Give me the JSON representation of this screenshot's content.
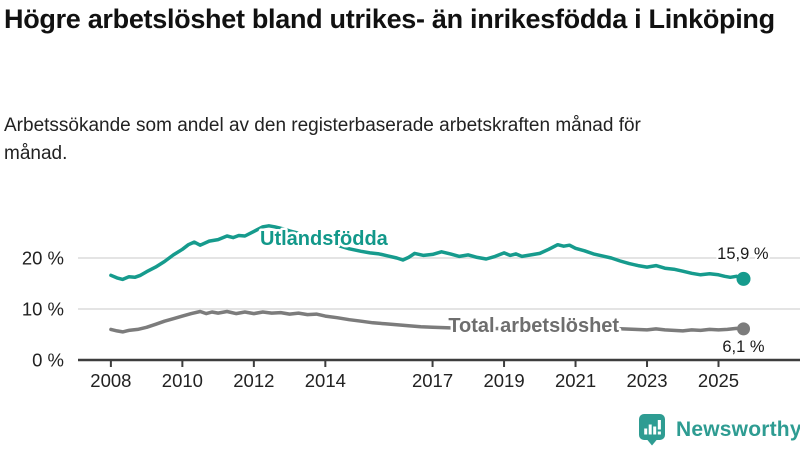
{
  "title": "Högre arbetslöshet bland utrikes- än inrikesfödda i Linköping",
  "subtitle": "Arbetssökande som andel av den registerbaserade arbetskraften månad för månad.",
  "colors": {
    "brand": "#2E9C92",
    "teal_series": "#169B8D",
    "gray_series": "#7C7C7C",
    "gray_label": "#6E6E6E",
    "axis": "#3D3D3D",
    "gridline": "#DBDBDB",
    "text_dark": "#1A1A1A"
  },
  "branding": {
    "name": "Newsworthy",
    "icon": "newsworthy-chart-bubble-icon"
  },
  "chart_data": {
    "type": "line",
    "title": "Högre arbetslöshet bland utrikes- än inrikesfödda i Linköping",
    "subtitle": "Arbetssökande som andel av den registerbaserade arbetskraften månad för månad.",
    "xlabel": "",
    "ylabel": "",
    "grid": "horizontal",
    "xlim": [
      2007.08,
      2027.28
    ],
    "ylim": [
      0,
      29.4
    ],
    "x_ticks": [
      2008,
      2010,
      2012,
      2014,
      2017,
      2019,
      2021,
      2023,
      2025
    ],
    "x_tick_labels": [
      "2008",
      "2010",
      "2012",
      "2014",
      "2017",
      "2019",
      "2021",
      "2023",
      "2025"
    ],
    "y_ticks": [
      0,
      10,
      20
    ],
    "y_tick_labels": [
      "0 %",
      "10 %",
      "20 %"
    ],
    "series": [
      {
        "name": "Utlandsfödda",
        "color": "#169B8D",
        "label_color": "#12988A",
        "end_label": "15,9 %",
        "end_value": 15.9,
        "label_pos": [
          2013.96,
          23.9
        ],
        "end_label_offset": [
          25,
          -20
        ],
        "dot_radius": 7,
        "points": [
          [
            2008.0,
            16.6
          ],
          [
            2008.17,
            16.1
          ],
          [
            2008.33,
            15.8
          ],
          [
            2008.5,
            16.3
          ],
          [
            2008.67,
            16.2
          ],
          [
            2008.83,
            16.6
          ],
          [
            2009.0,
            17.3
          ],
          [
            2009.25,
            18.2
          ],
          [
            2009.5,
            19.3
          ],
          [
            2009.75,
            20.6
          ],
          [
            2010.0,
            21.7
          ],
          [
            2010.17,
            22.6
          ],
          [
            2010.33,
            23.1
          ],
          [
            2010.5,
            22.5
          ],
          [
            2010.75,
            23.3
          ],
          [
            2011.0,
            23.6
          ],
          [
            2011.25,
            24.3
          ],
          [
            2011.42,
            24.0
          ],
          [
            2011.58,
            24.4
          ],
          [
            2011.75,
            24.3
          ],
          [
            2012.0,
            25.2
          ],
          [
            2012.25,
            26.1
          ],
          [
            2012.42,
            26.3
          ],
          [
            2012.58,
            26.1
          ],
          [
            2012.83,
            25.7
          ],
          [
            2013.0,
            25.3
          ],
          [
            2013.33,
            24.7
          ],
          [
            2013.67,
            24.0
          ],
          [
            2014.0,
            23.3
          ],
          [
            2014.33,
            22.5
          ],
          [
            2014.67,
            21.8
          ],
          [
            2015.0,
            21.3
          ],
          [
            2015.25,
            21.0
          ],
          [
            2015.5,
            20.8
          ],
          [
            2015.75,
            20.4
          ],
          [
            2016.0,
            20.0
          ],
          [
            2016.17,
            19.6
          ],
          [
            2016.33,
            20.1
          ],
          [
            2016.5,
            20.9
          ],
          [
            2016.75,
            20.5
          ],
          [
            2017.0,
            20.7
          ],
          [
            2017.25,
            21.2
          ],
          [
            2017.5,
            20.8
          ],
          [
            2017.75,
            20.3
          ],
          [
            2018.0,
            20.6
          ],
          [
            2018.25,
            20.1
          ],
          [
            2018.5,
            19.8
          ],
          [
            2018.75,
            20.3
          ],
          [
            2019.0,
            21.0
          ],
          [
            2019.17,
            20.5
          ],
          [
            2019.33,
            20.8
          ],
          [
            2019.5,
            20.3
          ],
          [
            2019.75,
            20.6
          ],
          [
            2020.0,
            20.9
          ],
          [
            2020.25,
            21.7
          ],
          [
            2020.5,
            22.6
          ],
          [
            2020.67,
            22.3
          ],
          [
            2020.83,
            22.5
          ],
          [
            2021.0,
            21.9
          ],
          [
            2021.25,
            21.4
          ],
          [
            2021.5,
            20.8
          ],
          [
            2021.75,
            20.4
          ],
          [
            2022.0,
            20.0
          ],
          [
            2022.25,
            19.4
          ],
          [
            2022.5,
            18.9
          ],
          [
            2022.75,
            18.5
          ],
          [
            2023.0,
            18.2
          ],
          [
            2023.25,
            18.5
          ],
          [
            2023.5,
            18.0
          ],
          [
            2023.75,
            17.8
          ],
          [
            2024.0,
            17.4
          ],
          [
            2024.25,
            17.0
          ],
          [
            2024.5,
            16.7
          ],
          [
            2024.75,
            16.9
          ],
          [
            2025.0,
            16.7
          ],
          [
            2025.17,
            16.4
          ],
          [
            2025.33,
            16.2
          ],
          [
            2025.5,
            16.4
          ],
          [
            2025.7,
            15.9
          ]
        ]
      },
      {
        "name": "Total arbetslöshet",
        "color": "#7C7C7C",
        "label_color": "#6E6E6E",
        "end_label": "6,1 %",
        "end_value": 6.1,
        "label_pos": [
          2019.83,
          6.9
        ],
        "end_label_offset": [
          21,
          23
        ],
        "dot_radius": 6.5,
        "points": [
          [
            2008.0,
            6.0
          ],
          [
            2008.17,
            5.7
          ],
          [
            2008.33,
            5.5
          ],
          [
            2008.5,
            5.8
          ],
          [
            2008.75,
            6.0
          ],
          [
            2009.0,
            6.4
          ],
          [
            2009.25,
            7.0
          ],
          [
            2009.5,
            7.6
          ],
          [
            2009.75,
            8.1
          ],
          [
            2010.0,
            8.6
          ],
          [
            2010.25,
            9.1
          ],
          [
            2010.5,
            9.5
          ],
          [
            2010.67,
            9.1
          ],
          [
            2010.83,
            9.4
          ],
          [
            2011.0,
            9.2
          ],
          [
            2011.25,
            9.5
          ],
          [
            2011.5,
            9.1
          ],
          [
            2011.75,
            9.4
          ],
          [
            2012.0,
            9.1
          ],
          [
            2012.25,
            9.4
          ],
          [
            2012.5,
            9.2
          ],
          [
            2012.75,
            9.3
          ],
          [
            2013.0,
            9.0
          ],
          [
            2013.25,
            9.2
          ],
          [
            2013.5,
            8.9
          ],
          [
            2013.75,
            9.0
          ],
          [
            2014.0,
            8.6
          ],
          [
            2014.33,
            8.3
          ],
          [
            2014.67,
            7.9
          ],
          [
            2015.0,
            7.6
          ],
          [
            2015.33,
            7.3
          ],
          [
            2015.67,
            7.1
          ],
          [
            2016.0,
            6.9
          ],
          [
            2016.33,
            6.7
          ],
          [
            2016.67,
            6.5
          ],
          [
            2017.0,
            6.4
          ],
          [
            2017.5,
            6.3
          ],
          [
            2018.0,
            6.2
          ],
          [
            2018.5,
            6.1
          ],
          [
            2019.0,
            6.2
          ],
          [
            2019.5,
            6.3
          ],
          [
            2020.0,
            6.6
          ],
          [
            2020.33,
            7.2
          ],
          [
            2020.58,
            7.5
          ],
          [
            2020.83,
            7.3
          ],
          [
            2021.0,
            7.1
          ],
          [
            2021.5,
            6.6
          ],
          [
            2022.0,
            6.2
          ],
          [
            2022.33,
            6.1
          ],
          [
            2022.67,
            6.0
          ],
          [
            2023.0,
            5.9
          ],
          [
            2023.25,
            6.1
          ],
          [
            2023.5,
            5.9
          ],
          [
            2023.75,
            5.8
          ],
          [
            2024.0,
            5.7
          ],
          [
            2024.25,
            5.9
          ],
          [
            2024.5,
            5.8
          ],
          [
            2024.75,
            6.0
          ],
          [
            2025.0,
            5.9
          ],
          [
            2025.25,
            6.0
          ],
          [
            2025.5,
            6.2
          ],
          [
            2025.7,
            6.1
          ]
        ]
      }
    ]
  }
}
